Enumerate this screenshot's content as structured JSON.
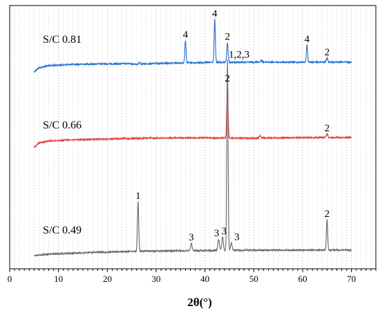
{
  "chart_data": {
    "type": "line",
    "title": "",
    "xlabel": "2θ(°)",
    "ylabel": "",
    "xlim": [
      0,
      75
    ],
    "x_ticks": [
      0,
      10,
      20,
      30,
      40,
      50,
      60,
      70
    ],
    "x_tick_labels": [
      "0",
      "10",
      "20",
      "30",
      "40",
      "50",
      "60",
      "70"
    ],
    "grid": "vertical dashed lines at every 1 degree",
    "legend": "none",
    "series": [
      {
        "name": "S/C 0.81",
        "color": "#1f6fd1",
        "label_at": [
          7.5
        ],
        "baseline": [
          [
            5,
            0.86
          ],
          [
            6,
            0.92
          ],
          [
            8,
            0.95
          ],
          [
            12,
            0.965
          ],
          [
            18,
            0.975
          ],
          [
            24,
            0.978
          ],
          [
            26,
            0.968
          ],
          [
            30,
            0.982
          ],
          [
            35,
            0.99
          ],
          [
            40,
            0.995
          ],
          [
            50,
            1.0
          ],
          [
            60,
            1.0
          ],
          [
            70,
            1.0
          ]
        ],
        "peaks": [
          {
            "x": 26.6,
            "height": 0.025,
            "label": ""
          },
          {
            "x": 36.0,
            "height": 0.26,
            "label": "4"
          },
          {
            "x": 42.0,
            "height": 0.5,
            "label": "4"
          },
          {
            "x": 44.6,
            "height": 0.23,
            "label": "2"
          },
          {
            "x": 51.5,
            "height": 0.02,
            "label": ""
          },
          {
            "x": 60.9,
            "height": 0.2,
            "label": "4"
          },
          {
            "x": 65.0,
            "height": 0.05,
            "label": "2"
          }
        ]
      },
      {
        "name": "S/C 0.66",
        "color": "#e23a3a",
        "label_at": [
          7.5
        ],
        "baseline": [
          [
            5,
            0.86
          ],
          [
            6,
            0.92
          ],
          [
            8,
            0.95
          ],
          [
            12,
            0.965
          ],
          [
            18,
            0.975
          ],
          [
            24,
            0.985
          ],
          [
            30,
            0.992
          ],
          [
            40,
            0.995
          ],
          [
            50,
            0.99
          ],
          [
            60,
            1.0
          ],
          [
            70,
            1.0
          ]
        ],
        "peaks": [
          {
            "x": 44.6,
            "height": 0.62,
            "label": "2"
          },
          {
            "x": 51.3,
            "height": 0.03,
            "label": ""
          },
          {
            "x": 65.0,
            "height": 0.04,
            "label": "2"
          }
        ]
      },
      {
        "name": "S/C 0.49",
        "color": "#666666",
        "label_at": [
          7.5
        ],
        "baseline": [
          [
            5,
            0.94
          ],
          [
            8,
            0.955
          ],
          [
            12,
            0.965
          ],
          [
            18,
            0.975
          ],
          [
            24,
            0.985
          ],
          [
            30,
            0.99
          ],
          [
            40,
            0.995
          ],
          [
            50,
            1.0
          ],
          [
            60,
            1.0
          ],
          [
            70,
            1.0
          ]
        ],
        "peaks": [
          {
            "x": 26.3,
            "height": 0.26,
            "label": "1"
          },
          {
            "x": 37.2,
            "height": 0.04,
            "label": "3"
          },
          {
            "x": 42.8,
            "height": 0.06,
            "label": "3"
          },
          {
            "x": 43.6,
            "height": 0.07,
            "label": "3"
          },
          {
            "x": 44.6,
            "height": 1.0,
            "label": "1,2,3"
          },
          {
            "x": 45.4,
            "height": 0.04,
            "label": "3"
          },
          {
            "x": 65.0,
            "height": 0.16,
            "label": "2"
          }
        ]
      }
    ]
  }
}
